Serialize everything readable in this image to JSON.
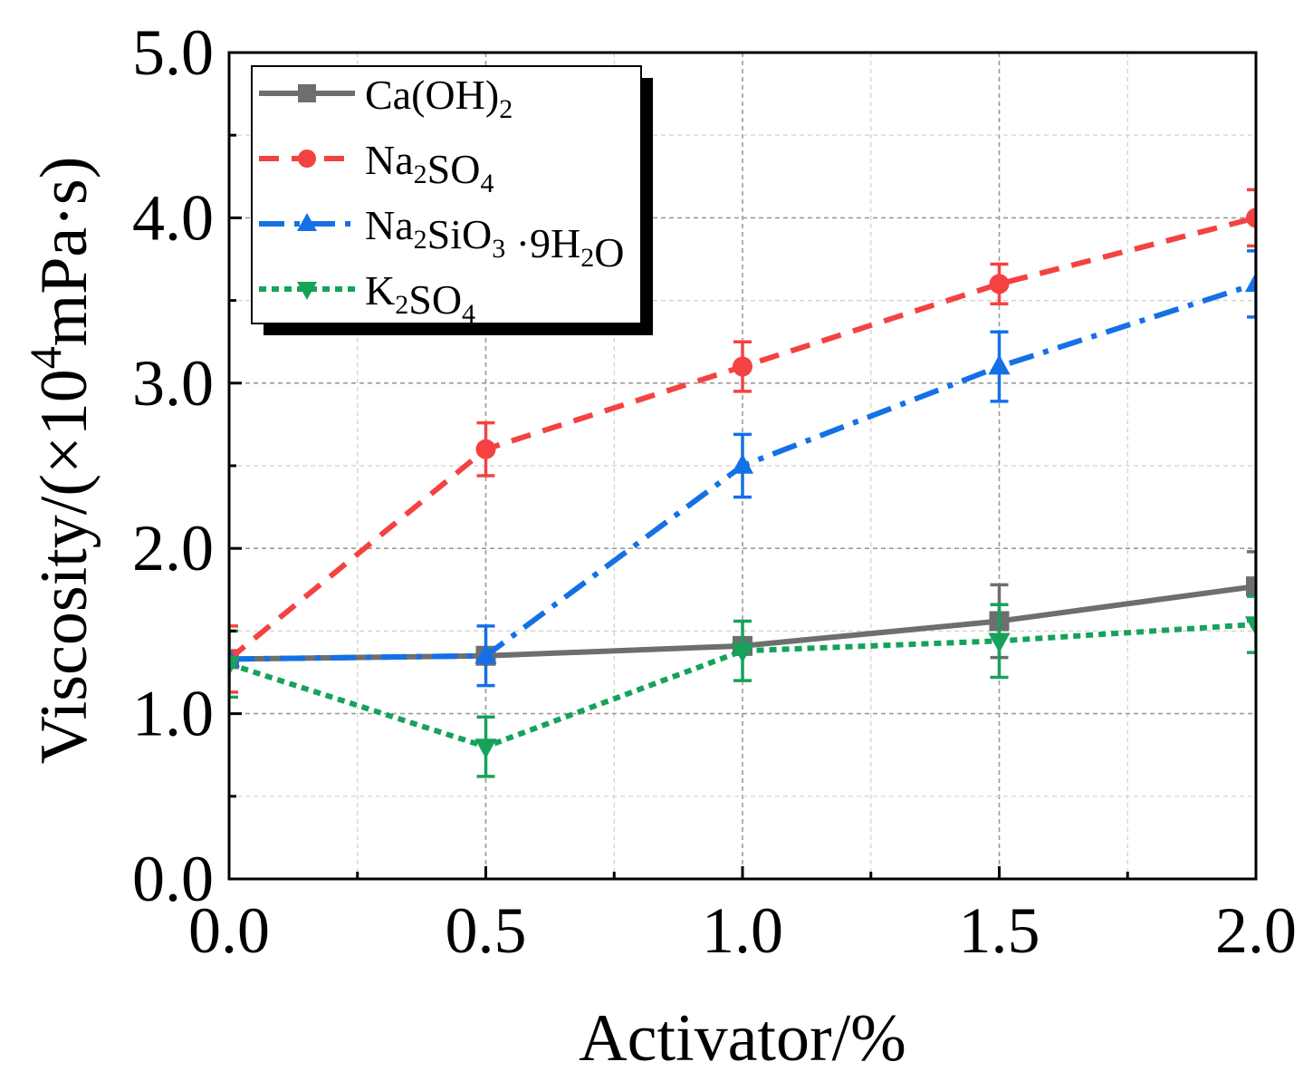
{
  "chart_data": {
    "type": "line",
    "xlabel": "Activator/%",
    "ylabel": {
      "pre": "Viscosity/(×10",
      "sup": "4",
      "post": "mPa·s)"
    },
    "xlim": [
      0.0,
      2.0
    ],
    "ylim": [
      0.0,
      5.0
    ],
    "x_ticks": [
      0.0,
      0.5,
      1.0,
      1.5,
      2.0
    ],
    "x_tick_labels": [
      "0.0",
      "0.5",
      "1.0",
      "1.5",
      "2.0"
    ],
    "y_ticks": [
      0.0,
      1.0,
      2.0,
      3.0,
      4.0,
      5.0
    ],
    "y_tick_labels": [
      "0.0",
      "1.0",
      "2.0",
      "3.0",
      "4.0",
      "5.0"
    ],
    "grid": true,
    "legend_position": "top-left",
    "x": [
      0.0,
      0.5,
      1.0,
      1.5,
      2.0
    ],
    "series": [
      {
        "name": "Ca(OH)2",
        "legend": [
          {
            "t": "Ca(OH)",
            "sub": false
          },
          {
            "t": "2",
            "sub": true
          }
        ],
        "color": "#6e6e6e",
        "dash": "solid",
        "marker": "square",
        "values": [
          1.33,
          1.35,
          1.41,
          1.56,
          1.77
        ],
        "errors": [
          0.0,
          0.0,
          0.0,
          0.22,
          0.21
        ]
      },
      {
        "name": "Na2SO4",
        "legend": [
          {
            "t": "Na",
            "sub": false
          },
          {
            "t": "2",
            "sub": true
          },
          {
            "t": "SO",
            "sub": false
          },
          {
            "t": "4",
            "sub": true
          }
        ],
        "color": "#f44242",
        "dash": "dash",
        "marker": "circle",
        "values": [
          1.33,
          2.6,
          3.1,
          3.6,
          4.0
        ],
        "errors": [
          0.2,
          0.16,
          0.15,
          0.12,
          0.17
        ]
      },
      {
        "name": "Na2SiO3 ·9H2O",
        "legend": [
          {
            "t": "Na",
            "sub": false
          },
          {
            "t": "2",
            "sub": true
          },
          {
            "t": "SiO",
            "sub": false
          },
          {
            "t": "3",
            "sub": true
          },
          {
            "t": " ·9H",
            "sub": false
          },
          {
            "t": "2",
            "sub": true
          },
          {
            "t": "O",
            "sub": false
          }
        ],
        "color": "#1470e6",
        "dash": "dashdot",
        "marker": "triangle-up",
        "values": [
          1.33,
          1.35,
          2.5,
          3.1,
          3.6
        ],
        "errors": [
          0.0,
          0.18,
          0.19,
          0.21,
          0.2
        ]
      },
      {
        "name": "K2SO4",
        "legend": [
          {
            "t": "K",
            "sub": false
          },
          {
            "t": "2",
            "sub": true
          },
          {
            "t": "SO",
            "sub": false
          },
          {
            "t": "4",
            "sub": true
          }
        ],
        "color": "#16a25a",
        "dash": "dot",
        "marker": "triangle-down",
        "values": [
          1.3,
          0.8,
          1.38,
          1.44,
          1.54
        ],
        "errors": [
          0.2,
          0.18,
          0.18,
          0.22,
          0.17
        ]
      }
    ]
  }
}
